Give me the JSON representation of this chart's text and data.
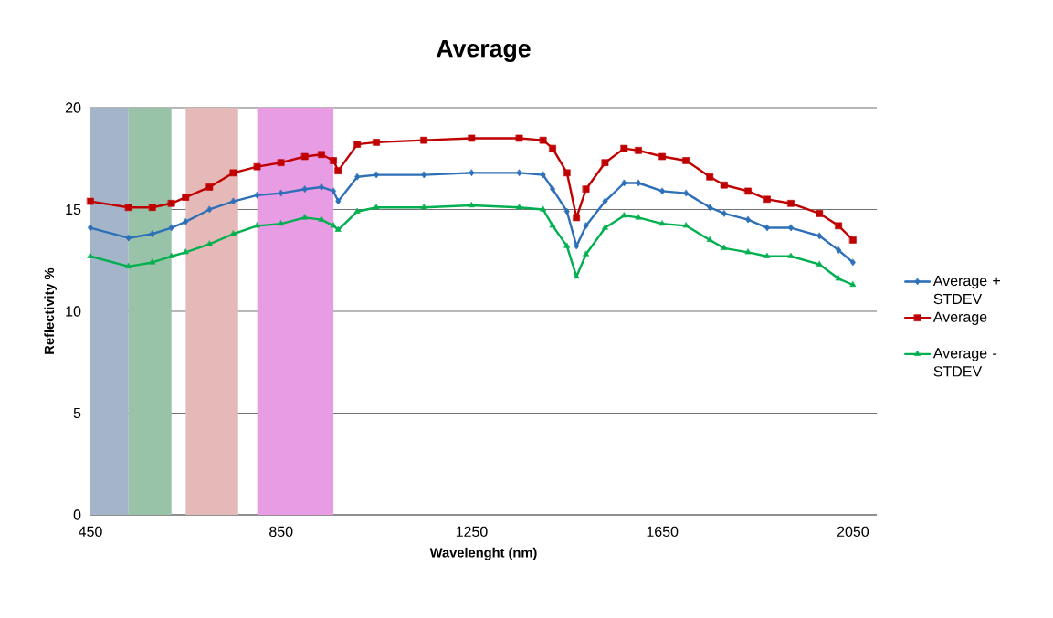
{
  "chart_data": {
    "type": "line",
    "title": "Average",
    "xlabel": "Wavelenght (nm)",
    "ylabel": "Reflectivity %",
    "x": [
      450,
      530,
      580,
      620,
      650,
      700,
      750,
      800,
      850,
      900,
      935,
      960,
      970,
      1010,
      1050,
      1150,
      1250,
      1350,
      1400,
      1420,
      1450,
      1470,
      1490,
      1530,
      1570,
      1600,
      1650,
      1700,
      1750,
      1780,
      1830,
      1870,
      1920,
      1980,
      2020,
      2050
    ],
    "series": [
      {
        "name": "Average + STDEV",
        "color": "#2e70b8",
        "marker": "diamond",
        "values": [
          14.1,
          13.6,
          13.8,
          14.1,
          14.4,
          15.0,
          15.4,
          15.7,
          15.8,
          16.0,
          16.1,
          15.9,
          15.4,
          16.6,
          16.7,
          16.7,
          16.8,
          16.8,
          16.7,
          16.0,
          14.9,
          13.2,
          14.2,
          15.4,
          16.3,
          16.3,
          15.9,
          15.8,
          15.1,
          14.8,
          14.5,
          14.1,
          14.1,
          13.7,
          13.0,
          12.4
        ]
      },
      {
        "name": "Average",
        "color": "#c00000",
        "marker": "square",
        "values": [
          15.4,
          15.1,
          15.1,
          15.3,
          15.6,
          16.1,
          16.8,
          17.1,
          17.3,
          17.6,
          17.7,
          17.4,
          16.9,
          18.2,
          18.3,
          18.4,
          18.5,
          18.5,
          18.4,
          18.0,
          16.8,
          14.6,
          16.0,
          17.3,
          18.0,
          17.9,
          17.6,
          17.4,
          16.6,
          16.2,
          15.9,
          15.5,
          15.3,
          14.8,
          14.2,
          13.5
        ]
      },
      {
        "name": "Average - STDEV",
        "color": "#00b050",
        "marker": "triangle",
        "values": [
          12.7,
          12.2,
          12.4,
          12.7,
          12.9,
          13.3,
          13.8,
          14.2,
          14.3,
          14.6,
          14.5,
          14.2,
          14.0,
          14.9,
          15.1,
          15.1,
          15.2,
          15.1,
          15.0,
          14.2,
          13.2,
          11.7,
          12.8,
          14.1,
          14.7,
          14.6,
          14.3,
          14.2,
          13.5,
          13.1,
          12.9,
          12.7,
          12.7,
          12.3,
          11.6,
          11.3
        ]
      }
    ],
    "bands": [
      {
        "axis": "x",
        "from": 450,
        "to": 530,
        "color": "#a4b4c9"
      },
      {
        "axis": "x",
        "from": 530,
        "to": 620,
        "color": "#98c3a8"
      },
      {
        "axis": "x",
        "from": 650,
        "to": 760,
        "color": "#e5b9b8"
      },
      {
        "axis": "x",
        "from": 800,
        "to": 960,
        "color": "#e89ce4"
      }
    ],
    "xlim": [
      450,
      2100
    ],
    "xticks": [
      450,
      850,
      1250,
      1650,
      2050
    ],
    "ylim": [
      0,
      20
    ],
    "yticks": [
      0,
      5,
      10,
      15,
      20
    ],
    "grid": "y",
    "legend": "right",
    "line_style": "solid"
  }
}
